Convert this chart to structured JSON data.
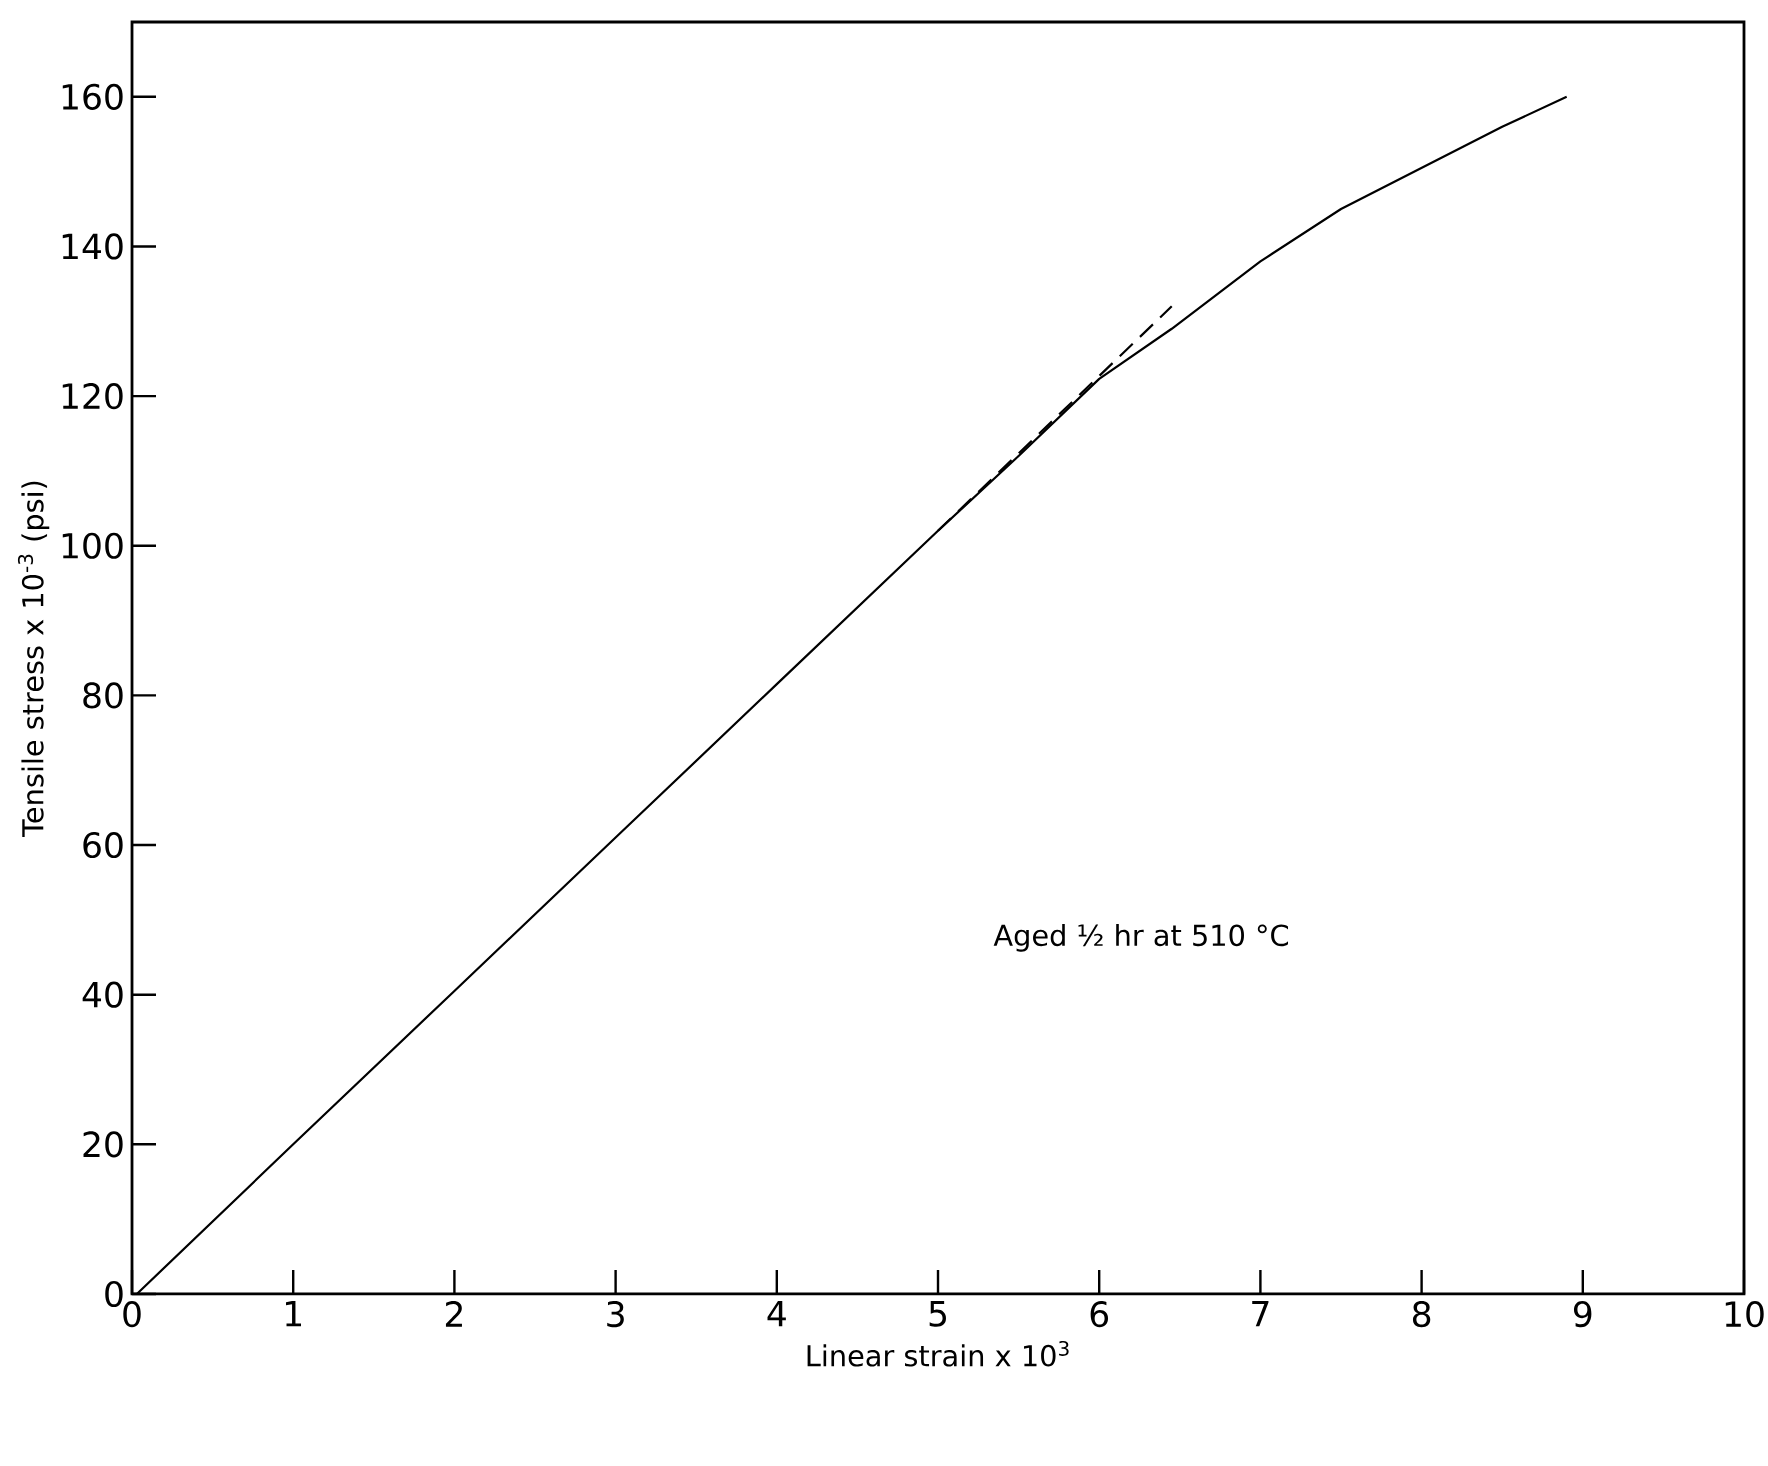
{
  "chart_data": {
    "type": "line",
    "xlabel": "Linear strain x 10$^{3}$",
    "ylabel": "Tensile stress x 10$^{-3}$   (psi)",
    "xlim": [
      0,
      10
    ],
    "ylim": [
      0,
      170
    ],
    "xticks": [
      0,
      1,
      2,
      3,
      4,
      5,
      6,
      7,
      8,
      9,
      10
    ],
    "yticks": [
      0,
      20,
      40,
      60,
      80,
      100,
      120,
      140,
      160
    ],
    "grid": false,
    "marker": "none",
    "annotations": [
      "Aged ½ hr at 510 °C"
    ],
    "series": [
      {
        "color": "#000000",
        "line_style": "solid",
        "x": [
          0.03,
          1,
          2,
          3,
          4,
          5,
          5.5,
          6,
          6.45,
          7,
          7.5,
          8,
          8.5,
          8.9
        ],
        "values": [
          0,
          20,
          40.5,
          61,
          81.5,
          102,
          112,
          122.3,
          129,
          138,
          145,
          150.5,
          156,
          160
        ]
      },
      {
        "color": "#000000",
        "line_style": "dashed",
        "x": [
          5,
          6.45
        ],
        "values": [
          102,
          132
        ]
      }
    ]
  }
}
